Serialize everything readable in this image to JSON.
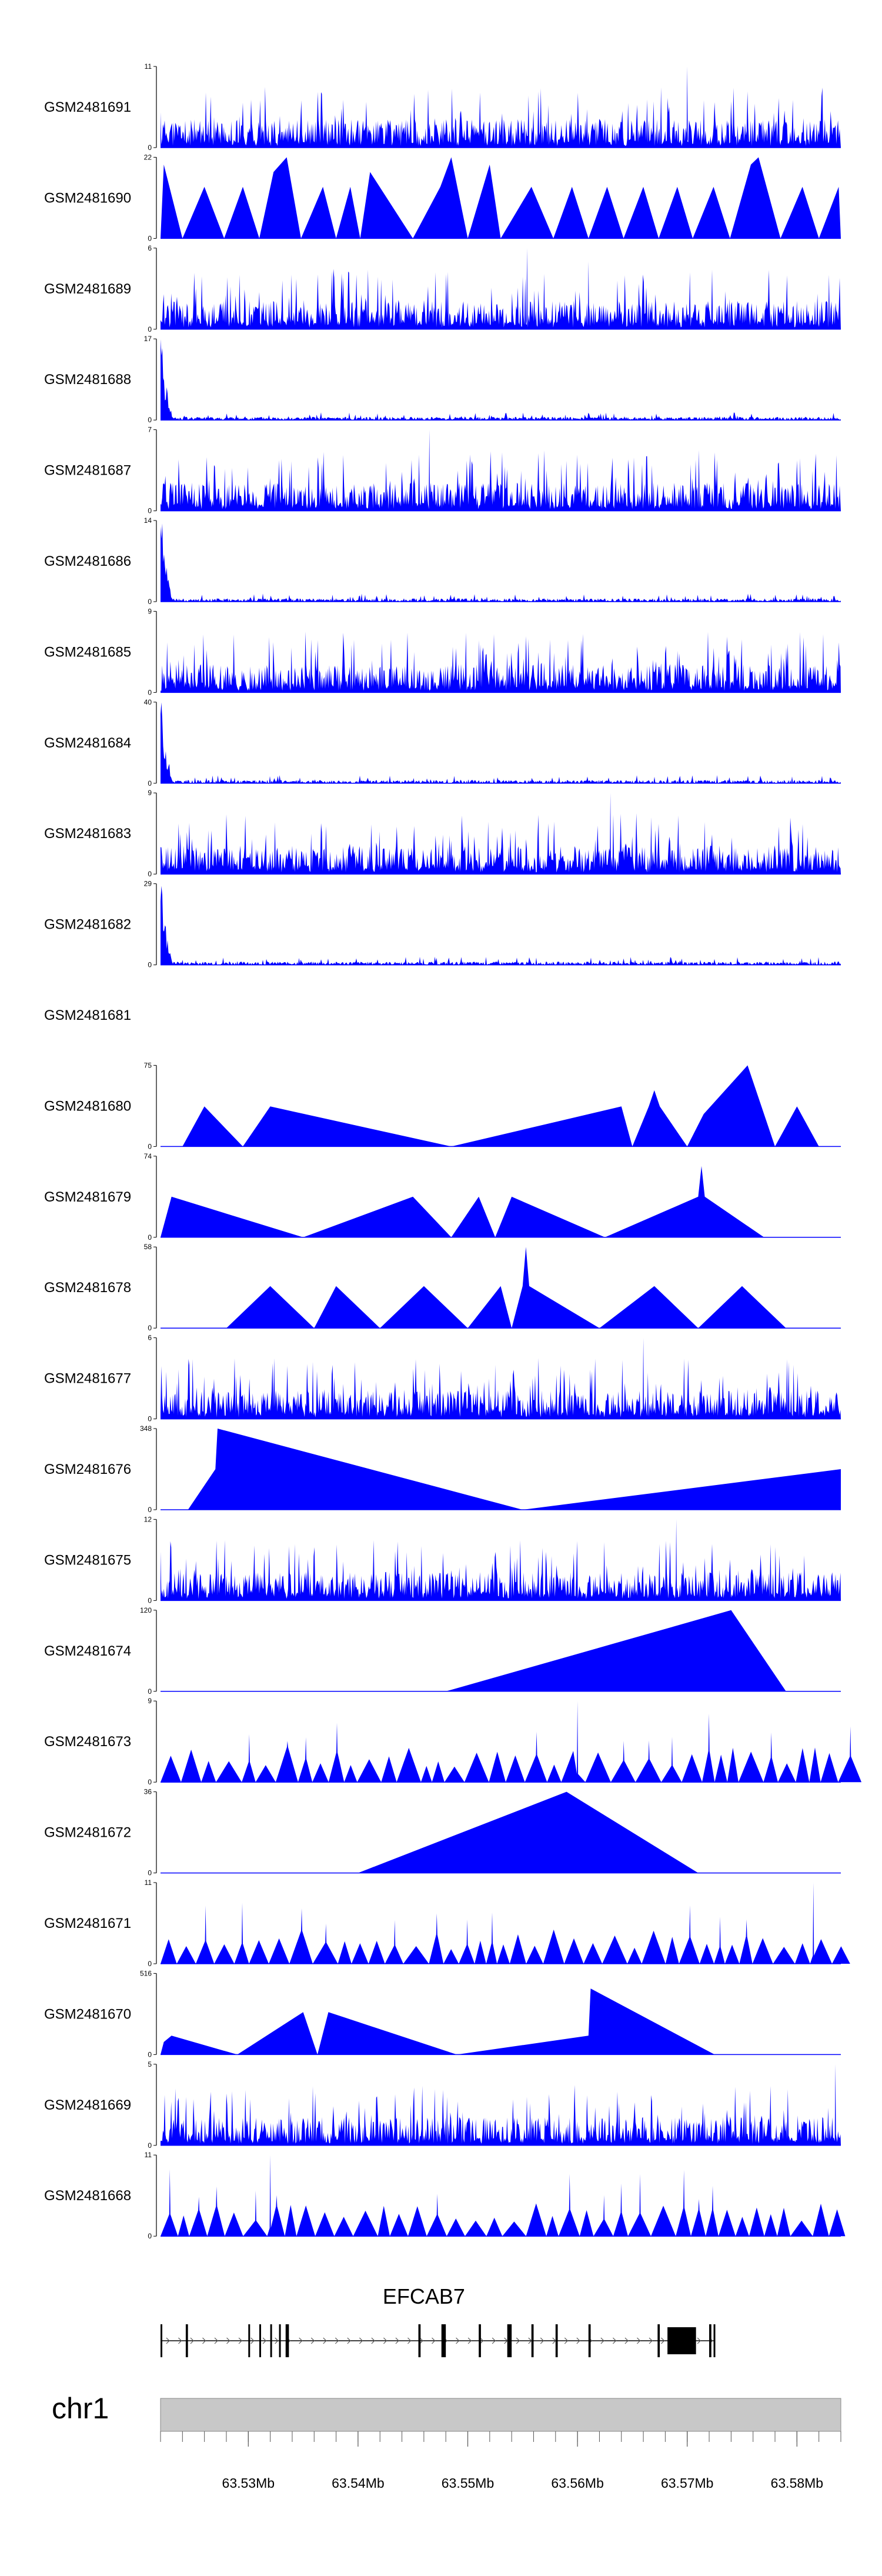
{
  "chart_data": {
    "type": "area",
    "description_tracks": "coverage tracks, one per sample",
    "x_domain": [
      63522000,
      63584000
    ],
    "colors": {
      "fill": "#0000ff",
      "axis": "#000000",
      "ideogram": "#c8c8c8"
    },
    "tracks": [
      {
        "name": "GSM2481691",
        "ymax": 11,
        "yticks": [
          "0",
          "11"
        ],
        "style": "dense",
        "seed": 11,
        "peaks": [
          [
            63570000,
            11
          ]
        ]
      },
      {
        "name": "GSM2481690",
        "ymax": 22,
        "yticks": [
          "0",
          "22"
        ],
        "style": "tri",
        "seed": 21,
        "points": [
          [
            63522000,
            0
          ],
          [
            63522300,
            20
          ],
          [
            63524000,
            0
          ],
          [
            63526000,
            14
          ],
          [
            63527800,
            0
          ],
          [
            63529500,
            14
          ],
          [
            63531000,
            0
          ],
          [
            63532300,
            18
          ],
          [
            63533500,
            22
          ],
          [
            63534800,
            0
          ],
          [
            63536800,
            14
          ],
          [
            63538000,
            0
          ],
          [
            63539300,
            14
          ],
          [
            63540200,
            0
          ],
          [
            63541100,
            18
          ],
          [
            63545000,
            0
          ],
          [
            63547500,
            14
          ],
          [
            63548500,
            22
          ],
          [
            63550000,
            0
          ],
          [
            63552000,
            20
          ],
          [
            63553000,
            0
          ],
          [
            63555800,
            14
          ],
          [
            63557800,
            0
          ],
          [
            63559500,
            14
          ],
          [
            63561000,
            0
          ],
          [
            63562700,
            14
          ],
          [
            63564200,
            0
          ],
          [
            63566000,
            14
          ],
          [
            63567400,
            0
          ],
          [
            63569100,
            14
          ],
          [
            63570500,
            0
          ],
          [
            63572400,
            14
          ],
          [
            63573900,
            0
          ],
          [
            63575800,
            20
          ],
          [
            63576500,
            22
          ],
          [
            63578500,
            0
          ],
          [
            63580500,
            14
          ],
          [
            63582000,
            0
          ],
          [
            63583800,
            14
          ],
          [
            63584000,
            0
          ]
        ]
      },
      {
        "name": "GSM2481689",
        "ymax": 6,
        "yticks": [
          "0",
          "6"
        ],
        "style": "dense",
        "seed": 31,
        "peaks": [
          [
            63555400,
            6
          ],
          [
            63561000,
            5
          ]
        ]
      },
      {
        "name": "GSM2481688",
        "ymax": 17,
        "yticks": [
          "0",
          "17"
        ],
        "style": "early",
        "seed": 41
      },
      {
        "name": "GSM2481687",
        "ymax": 7,
        "yticks": [
          "0",
          "7"
        ],
        "style": "dense",
        "seed": 51,
        "peaks": [
          [
            63546500,
            7
          ]
        ]
      },
      {
        "name": "GSM2481686",
        "ymax": 14,
        "yticks": [
          "0",
          "14"
        ],
        "style": "early",
        "seed": 61
      },
      {
        "name": "GSM2481685",
        "ymax": 9,
        "yticks": [
          "0",
          "9"
        ],
        "style": "dense",
        "seed": 71
      },
      {
        "name": "GSM2481684",
        "ymax": 40,
        "yticks": [
          "0",
          "40"
        ],
        "style": "early",
        "seed": 81
      },
      {
        "name": "GSM2481683",
        "ymax": 9,
        "yticks": [
          "0",
          "9"
        ],
        "style": "dense",
        "seed": 91,
        "peaks": [
          [
            63563000,
            9
          ]
        ]
      },
      {
        "name": "GSM2481682",
        "ymax": 29,
        "yticks": [
          "0",
          "29"
        ],
        "style": "early",
        "seed": 101
      },
      {
        "name": "GSM2481681",
        "ymax": 0,
        "yticks": [],
        "style": "empty",
        "seed": 0
      },
      {
        "name": "GSM2481680",
        "ymax": 75,
        "yticks": [
          "0",
          "75"
        ],
        "style": "tri",
        "points": [
          [
            63524000,
            0
          ],
          [
            63526000,
            37
          ],
          [
            63529500,
            0
          ],
          [
            63532000,
            37
          ],
          [
            63548500,
            0
          ],
          [
            63564000,
            37
          ],
          [
            63565000,
            0
          ],
          [
            63566500,
            37
          ],
          [
            63567000,
            52
          ],
          [
            63567500,
            37
          ],
          [
            63570000,
            0
          ],
          [
            63571500,
            30
          ],
          [
            63575500,
            75
          ],
          [
            63578000,
            0
          ],
          [
            63580000,
            37
          ],
          [
            63582000,
            0
          ]
        ]
      },
      {
        "name": "GSM2481679",
        "ymax": 74,
        "yticks": [
          "0",
          "74"
        ],
        "style": "tri",
        "points": [
          [
            63522000,
            0
          ],
          [
            63523000,
            37
          ],
          [
            63535000,
            0
          ],
          [
            63545000,
            37
          ],
          [
            63548500,
            0
          ],
          [
            63551000,
            37
          ],
          [
            63552500,
            0
          ],
          [
            63554000,
            37
          ],
          [
            63562500,
            0
          ],
          [
            63571000,
            37
          ],
          [
            63571300,
            65
          ],
          [
            63571600,
            37
          ],
          [
            63577000,
            0
          ]
        ]
      },
      {
        "name": "GSM2481678",
        "ymax": 58,
        "yticks": [
          "0",
          "58"
        ],
        "style": "tri",
        "points": [
          [
            63528000,
            0
          ],
          [
            63532000,
            30
          ],
          [
            63536000,
            0
          ],
          [
            63538000,
            30
          ],
          [
            63542000,
            0
          ],
          [
            63546000,
            30
          ],
          [
            63550000,
            0
          ],
          [
            63553000,
            30
          ],
          [
            63554000,
            0
          ],
          [
            63555000,
            30
          ],
          [
            63555300,
            58
          ],
          [
            63555600,
            30
          ],
          [
            63562000,
            0
          ],
          [
            63567000,
            30
          ],
          [
            63571000,
            0
          ],
          [
            63575000,
            30
          ],
          [
            63579000,
            0
          ]
        ]
      },
      {
        "name": "GSM2481677",
        "ymax": 6,
        "yticks": [
          "0",
          "6"
        ],
        "style": "dense",
        "seed": 131,
        "peaks": [
          [
            63552500,
            4
          ],
          [
            63566000,
            6
          ]
        ]
      },
      {
        "name": "GSM2481676",
        "ymax": 348,
        "yticks": [
          "0",
          "348"
        ],
        "style": "tri",
        "points": [
          [
            63524500,
            0
          ],
          [
            63527000,
            174
          ],
          [
            63527200,
            348
          ],
          [
            63555000,
            0
          ],
          [
            63584000,
            174
          ],
          [
            63584000,
            0
          ]
        ]
      },
      {
        "name": "GSM2481675",
        "ymax": 12,
        "yticks": [
          "0",
          "12"
        ],
        "style": "dense",
        "seed": 151,
        "peaks": [
          [
            63569000,
            12
          ]
        ]
      },
      {
        "name": "GSM2481674",
        "ymax": 120,
        "yticks": [
          "0",
          "120"
        ],
        "style": "tri",
        "points": [
          [
            63548000,
            0
          ],
          [
            63574000,
            120
          ],
          [
            63579000,
            0
          ]
        ]
      },
      {
        "name": "GSM2481673",
        "ymax": 9,
        "yticks": [
          "0",
          "9"
        ],
        "style": "spike",
        "seed": 171,
        "peaks": [
          [
            63560000,
            9
          ]
        ]
      },
      {
        "name": "GSM2481672",
        "ymax": 36,
        "yticks": [
          "0",
          "36"
        ],
        "style": "tri",
        "points": [
          [
            63540000,
            0
          ],
          [
            63559000,
            36
          ],
          [
            63571000,
            0
          ]
        ]
      },
      {
        "name": "GSM2481671",
        "ymax": 11,
        "yticks": [
          "0",
          "11"
        ],
        "style": "spike",
        "seed": 191,
        "peaks": [
          [
            63581500,
            11
          ]
        ]
      },
      {
        "name": "GSM2481670",
        "ymax": 516,
        "yticks": [
          "0",
          "516"
        ],
        "style": "tri",
        "points": [
          [
            63522000,
            0
          ],
          [
            63522300,
            80
          ],
          [
            63523000,
            120
          ],
          [
            63529000,
            0
          ],
          [
            63535000,
            270
          ],
          [
            63536300,
            0
          ],
          [
            63537300,
            270
          ],
          [
            63549000,
            0
          ],
          [
            63561000,
            120
          ],
          [
            63561200,
            420
          ],
          [
            63572500,
            0
          ]
        ]
      },
      {
        "name": "GSM2481669",
        "ymax": 5,
        "yticks": [
          "0",
          "5"
        ],
        "style": "dense",
        "seed": 211,
        "peaks": [
          [
            63583500,
            5
          ]
        ]
      },
      {
        "name": "GSM2481668",
        "ymax": 11,
        "yticks": [
          "0",
          "11"
        ],
        "style": "spike",
        "seed": 221,
        "peaks": [
          [
            63532000,
            11
          ]
        ]
      }
    ],
    "gene": {
      "name": "EFCAB7",
      "start": 63522000,
      "end": 63572500,
      "strand": "+",
      "exons": [
        [
          63522000,
          63522150
        ],
        [
          63524300,
          63524500
        ],
        [
          63530000,
          63530150
        ],
        [
          63531000,
          63531150
        ],
        [
          63532000,
          63532150
        ],
        [
          63532800,
          63532950
        ],
        [
          63533400,
          63533700
        ],
        [
          63545500,
          63545700
        ],
        [
          63547600,
          63548000
        ],
        [
          63551000,
          63551200
        ],
        [
          63553600,
          63554000
        ],
        [
          63555800,
          63556000
        ],
        [
          63558000,
          63558200
        ],
        [
          63561000,
          63561200
        ],
        [
          63567300,
          63567500
        ],
        [
          63568200,
          63570800
        ],
        [
          63572000,
          63572200
        ],
        [
          63572400,
          63572500
        ]
      ],
      "label_position_bp": 63546000
    },
    "axis": {
      "chromosome": "chr1",
      "ticks_bp": [
        63530000,
        63540000,
        63550000,
        63560000,
        63570000,
        63580000
      ],
      "tick_labels": [
        "63.53Mb",
        "63.54Mb",
        "63.55Mb",
        "63.56Mb",
        "63.57Mb",
        "63.58Mb"
      ],
      "minor_step_bp": 2000
    }
  }
}
